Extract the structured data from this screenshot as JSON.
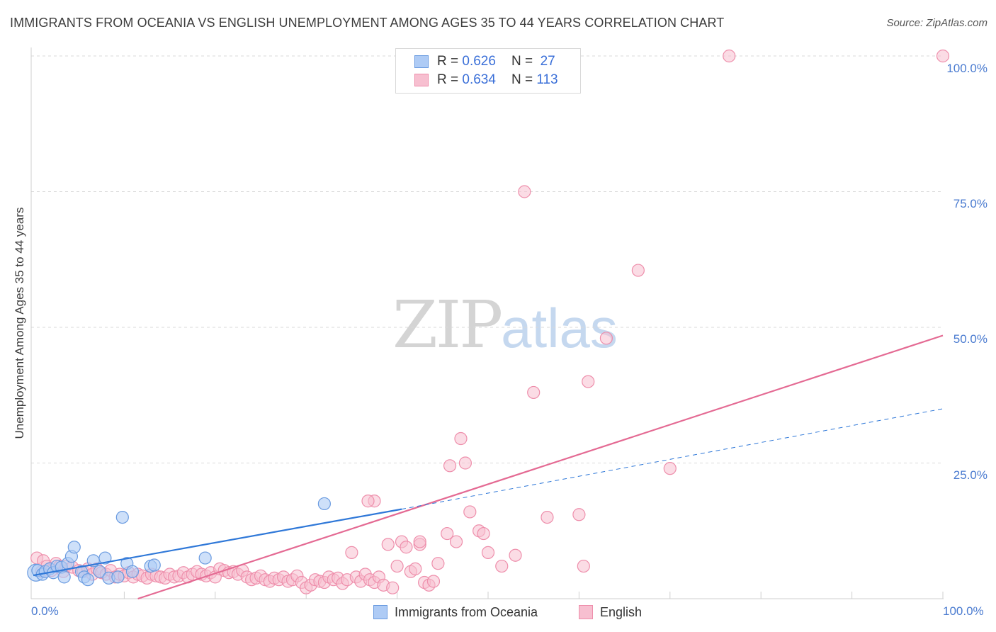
{
  "title": "IMMIGRANTS FROM OCEANIA VS ENGLISH UNEMPLOYMENT AMONG AGES 35 TO 44 YEARS CORRELATION CHART",
  "source": "Source: ZipAtlas.com",
  "watermark": {
    "zip": "ZIP",
    "atlas": "atlas"
  },
  "legend": {
    "r_label": "R =",
    "n_label": "N =",
    "series": [
      {
        "name": "Immigrants from Oceania",
        "r": "0.626",
        "n": "27"
      },
      {
        "name": "English",
        "r": "0.634",
        "n": "113"
      }
    ]
  },
  "colors": {
    "oceania_fill": "#aecbf5",
    "oceania_stroke": "#6a9be0",
    "oceania_line": "#2f78d8",
    "english_fill": "#f7bfd0",
    "english_stroke": "#ee8eab",
    "english_line": "#e46a93",
    "tick": "#4a7bd0",
    "grid": "#d9d9d9"
  },
  "chart_data": {
    "type": "scatter",
    "title": "IMMIGRANTS FROM OCEANIA VS ENGLISH UNEMPLOYMENT AMONG AGES 35 TO 44 YEARS CORRELATION CHART",
    "xlabel": "",
    "ylabel": "Unemployment Among Ages 35 to 44 years",
    "xlim": [
      0,
      100
    ],
    "ylim": [
      0,
      100
    ],
    "x_tick_labels": [
      "0.0%",
      "100.0%"
    ],
    "y_ticks": [
      25,
      50,
      75,
      100
    ],
    "y_tick_labels": [
      "25.0%",
      "50.0%",
      "75.0%",
      "100.0%"
    ],
    "series": [
      {
        "name": "Immigrants from Oceania",
        "points": [
          [
            0.3,
            4.8
          ],
          [
            0.5,
            5.2
          ],
          [
            1.0,
            4.5
          ],
          [
            1.3,
            5.0
          ],
          [
            1.8,
            5.5
          ],
          [
            2.2,
            4.8
          ],
          [
            2.6,
            6.0
          ],
          [
            3.1,
            5.8
          ],
          [
            3.4,
            4.0
          ],
          [
            3.8,
            6.5
          ],
          [
            4.2,
            7.8
          ],
          [
            4.5,
            9.5
          ],
          [
            5.3,
            5.0
          ],
          [
            5.6,
            4.0
          ],
          [
            6.0,
            3.5
          ],
          [
            6.6,
            7.0
          ],
          [
            7.3,
            5.0
          ],
          [
            7.9,
            7.5
          ],
          [
            8.3,
            3.8
          ],
          [
            9.3,
            4.0
          ],
          [
            9.8,
            15.0
          ],
          [
            10.3,
            6.5
          ],
          [
            10.9,
            5.0
          ],
          [
            12.9,
            6.0
          ],
          [
            13.3,
            6.2
          ],
          [
            18.9,
            7.5
          ],
          [
            32.0,
            17.5
          ]
        ],
        "trend": {
          "from": [
            0,
            4.3
          ],
          "to": [
            40.5,
            16.5
          ],
          "dashed_to": [
            100,
            35.0
          ]
        }
      },
      {
        "name": "English",
        "points": [
          [
            0.4,
            7.5
          ],
          [
            0.9,
            5.0
          ],
          [
            1.1,
            7.0
          ],
          [
            1.5,
            6.0
          ],
          [
            2.0,
            5.2
          ],
          [
            2.5,
            6.5
          ],
          [
            2.9,
            6.0
          ],
          [
            3.3,
            5.0
          ],
          [
            3.6,
            6.0
          ],
          [
            4.3,
            5.8
          ],
          [
            5.0,
            5.2
          ],
          [
            5.5,
            5.0
          ],
          [
            6.0,
            5.5
          ],
          [
            6.5,
            4.5
          ],
          [
            7.0,
            5.5
          ],
          [
            7.5,
            4.8
          ],
          [
            8.0,
            4.5
          ],
          [
            8.5,
            5.2
          ],
          [
            9.0,
            4.0
          ],
          [
            9.5,
            4.5
          ],
          [
            10.0,
            4.2
          ],
          [
            10.5,
            4.8
          ],
          [
            11.0,
            4.0
          ],
          [
            11.5,
            4.5
          ],
          [
            12.0,
            4.2
          ],
          [
            12.5,
            3.8
          ],
          [
            13.0,
            4.5
          ],
          [
            13.5,
            4.2
          ],
          [
            14.0,
            4.0
          ],
          [
            14.5,
            3.8
          ],
          [
            15.0,
            4.5
          ],
          [
            15.5,
            4.0
          ],
          [
            16.0,
            4.2
          ],
          [
            16.5,
            4.8
          ],
          [
            17.0,
            4.0
          ],
          [
            17.5,
            4.5
          ],
          [
            18.0,
            5.0
          ],
          [
            18.5,
            4.5
          ],
          [
            19.0,
            4.2
          ],
          [
            19.5,
            4.8
          ],
          [
            20.0,
            4.0
          ],
          [
            20.5,
            5.5
          ],
          [
            21.0,
            5.2
          ],
          [
            21.5,
            4.8
          ],
          [
            22.0,
            5.0
          ],
          [
            22.5,
            4.5
          ],
          [
            23.0,
            5.2
          ],
          [
            23.5,
            4.0
          ],
          [
            24.0,
            3.5
          ],
          [
            24.5,
            3.8
          ],
          [
            25.0,
            4.2
          ],
          [
            25.5,
            3.5
          ],
          [
            26.0,
            3.2
          ],
          [
            26.5,
            3.8
          ],
          [
            27.0,
            3.5
          ],
          [
            27.5,
            4.0
          ],
          [
            28.0,
            3.2
          ],
          [
            28.5,
            3.5
          ],
          [
            29.0,
            4.2
          ],
          [
            29.5,
            3.0
          ],
          [
            30.0,
            2.0
          ],
          [
            30.5,
            2.5
          ],
          [
            31.0,
            3.5
          ],
          [
            31.5,
            3.2
          ],
          [
            32.0,
            3.0
          ],
          [
            32.5,
            4.0
          ],
          [
            33.0,
            3.5
          ],
          [
            33.5,
            3.8
          ],
          [
            34.0,
            2.8
          ],
          [
            34.5,
            3.5
          ],
          [
            35.0,
            8.5
          ],
          [
            35.5,
            4.0
          ],
          [
            36.0,
            3.2
          ],
          [
            36.5,
            4.5
          ],
          [
            37.0,
            3.5
          ],
          [
            37.5,
            3.0
          ],
          [
            38.0,
            4.0
          ],
          [
            38.5,
            2.5
          ],
          [
            39.0,
            10.0
          ],
          [
            39.5,
            2.0
          ],
          [
            40.0,
            6.0
          ],
          [
            40.5,
            10.5
          ],
          [
            41.0,
            9.5
          ],
          [
            41.5,
            5.0
          ],
          [
            42.0,
            5.5
          ],
          [
            42.5,
            10.0
          ],
          [
            43.0,
            3.0
          ],
          [
            43.5,
            2.5
          ],
          [
            44.0,
            3.2
          ],
          [
            44.5,
            6.5
          ],
          [
            45.5,
            12.0
          ],
          [
            46.5,
            10.5
          ],
          [
            47.0,
            29.5
          ],
          [
            47.5,
            25.0
          ],
          [
            48.0,
            16.0
          ],
          [
            49.0,
            12.5
          ],
          [
            49.5,
            12.0
          ],
          [
            50.0,
            8.5
          ],
          [
            51.5,
            6.0
          ],
          [
            53.0,
            8.0
          ],
          [
            55.0,
            38.0
          ],
          [
            56.5,
            15.0
          ],
          [
            60.0,
            15.5
          ],
          [
            60.5,
            6.0
          ],
          [
            61.0,
            40.0
          ],
          [
            63.0,
            48.0
          ],
          [
            66.5,
            60.5
          ],
          [
            70.0,
            24.0
          ],
          [
            45.8,
            24.5
          ],
          [
            42.5,
            10.5
          ],
          [
            37.5,
            18.0
          ],
          [
            36.8,
            18.0
          ],
          [
            54.0,
            75.0
          ],
          [
            76.5,
            100.0
          ],
          [
            100.0,
            100.0
          ]
        ],
        "trend": {
          "from": [
            11.5,
            0
          ],
          "to": [
            100,
            48.5
          ]
        }
      }
    ]
  }
}
